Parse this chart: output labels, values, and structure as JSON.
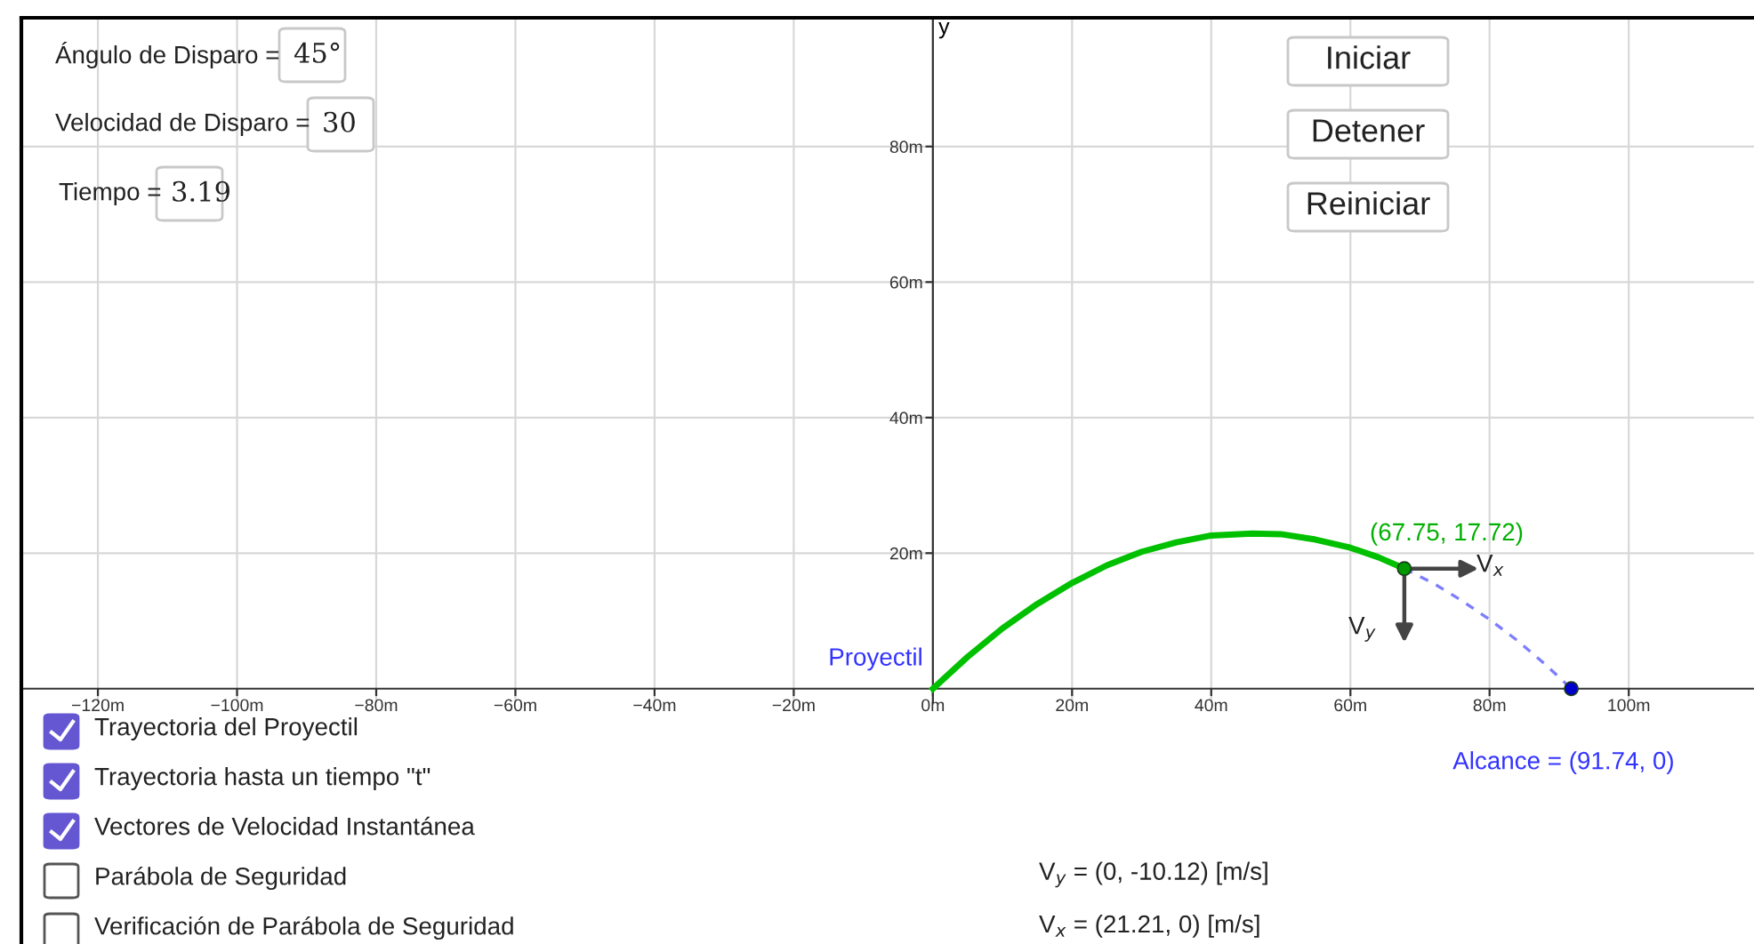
{
  "chart_data": {
    "type": "line",
    "ylabel": "y",
    "xlim": [
      -131,
      118
    ],
    "ylim": [
      -2,
      99
    ],
    "xticks": [
      {
        "value": -120,
        "label": "−120m"
      },
      {
        "value": -100,
        "label": "−100m"
      },
      {
        "value": -80,
        "label": "−80m"
      },
      {
        "value": -60,
        "label": "−60m"
      },
      {
        "value": -40,
        "label": "−40m"
      },
      {
        "value": -20,
        "label": "−20m"
      },
      {
        "value": 0,
        "label": "0m"
      },
      {
        "value": 20,
        "label": "20m"
      },
      {
        "value": 40,
        "label": "40m"
      },
      {
        "value": 60,
        "label": "60m"
      },
      {
        "value": 80,
        "label": "80m"
      },
      {
        "value": 100,
        "label": "100m"
      }
    ],
    "yticks": [
      {
        "value": 20,
        "label": "20m"
      },
      {
        "value": 40,
        "label": "40m"
      },
      {
        "value": 60,
        "label": "60m"
      },
      {
        "value": 80,
        "label": "80m"
      }
    ],
    "grid": true,
    "series": [
      {
        "color": "#00c000",
        "line_style": "solid",
        "x": [
          0,
          5,
          10,
          15,
          20,
          25,
          30,
          35,
          40,
          45.87,
          50,
          55,
          60,
          64,
          67.75
        ],
        "values": [
          0,
          4.7,
          8.9,
          12.5,
          15.6,
          18.2,
          20.2,
          21.6,
          22.6,
          22.9,
          22.8,
          22.0,
          20.8,
          19.4,
          17.72
        ]
      },
      {
        "color": "#7d7dff",
        "line_style": "dashed",
        "x": [
          67.75,
          72,
          76,
          80,
          84,
          88,
          91.74
        ],
        "values": [
          17.72,
          15.5,
          13.0,
          10.2,
          7.1,
          3.6,
          0
        ]
      },
      {
        "type": "scatter",
        "color": "#009900",
        "marker": "circle",
        "x": [
          67.75
        ],
        "values": [
          17.72
        ]
      },
      {
        "type": "scatter",
        "color": "#0000cc",
        "marker": "circle",
        "x": [
          91.74
        ],
        "values": [
          0
        ]
      }
    ],
    "annotations": [
      {
        "text": "Proyectil",
        "x": 0,
        "y": 0
      },
      {
        "text": "(67.75, 17.72)",
        "x": 67.75,
        "y": 17.72
      },
      {
        "text": "Alcance = (91.74, 0)",
        "x": 91.74,
        "y": 0
      },
      "V$_{x}$",
      "V$_{y}$",
      "Ángulo de Disparo =",
      "45°",
      "Velocidad de Disparo =",
      "30",
      "Tiempo =",
      "3.19",
      "Iniciar",
      "Detener",
      "Reiniciar",
      "Trayectoria del Proyectil",
      "Trayectoria hasta un tiempo \"t\"",
      "Vectores de Velocidad Instantánea",
      "Parábola de Seguridad",
      "Verificación de Parábola de Seguridad",
      "V$_{y}$ = (0, -10.12) [m/s]",
      "V$_{x}$ = (21.21, 0) [m/s]"
    ]
  }
}
